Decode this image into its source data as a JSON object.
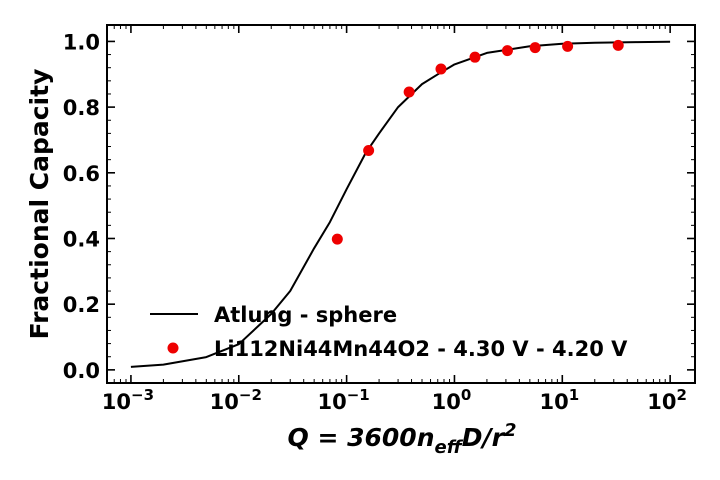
{
  "chart_data": {
    "type": "scatter",
    "xscale": "log",
    "xlim": [
      0.0006,
      170
    ],
    "ylim": [
      -0.04,
      1.05
    ],
    "xticks": [
      {
        "value": 0.001,
        "mantissa": "10",
        "exp": "−3"
      },
      {
        "value": 0.01,
        "mantissa": "10",
        "exp": "−2"
      },
      {
        "value": 0.1,
        "mantissa": "10",
        "exp": "−1"
      },
      {
        "value": 1,
        "mantissa": "10",
        "exp": "0"
      },
      {
        "value": 10,
        "mantissa": "10",
        "exp": "1"
      },
      {
        "value": 100,
        "mantissa": "10",
        "exp": "2"
      }
    ],
    "yticks": [
      {
        "value": 0.0,
        "label": "0.0"
      },
      {
        "value": 0.2,
        "label": "0.2"
      },
      {
        "value": 0.4,
        "label": "0.4"
      },
      {
        "value": 0.6,
        "label": "0.6"
      },
      {
        "value": 0.8,
        "label": "0.8"
      },
      {
        "value": 1.0,
        "label": "1.0"
      }
    ],
    "xlabel": {
      "base": "Q = 3600n",
      "sub": "eff",
      "mid": "D/r",
      "sup": "2"
    },
    "ylabel": "Fractional Capacity",
    "grid": false,
    "legend_position": "lower-right",
    "series": [
      {
        "name": "Atlung - sphere",
        "kind": "line",
        "color": "#000000",
        "x": [
          0.001,
          0.002,
          0.005,
          0.01,
          0.02,
          0.03,
          0.05,
          0.07,
          0.1,
          0.15,
          0.2,
          0.3,
          0.5,
          0.7,
          1,
          2,
          5,
          10,
          20,
          50,
          100
        ],
        "y": [
          0.009,
          0.016,
          0.039,
          0.078,
          0.17,
          0.24,
          0.37,
          0.45,
          0.55,
          0.66,
          0.72,
          0.8,
          0.87,
          0.9,
          0.93,
          0.965,
          0.985,
          0.993,
          0.996,
          0.998,
          0.999
        ]
      },
      {
        "name": "Li112Ni44Mn44O2 - 4.30 V - 4.20 V",
        "kind": "scatter",
        "color": "#ee0000",
        "x": [
          0.082,
          0.16,
          0.38,
          0.75,
          1.55,
          3.1,
          5.6,
          11.2,
          33
        ],
        "y": [
          0.398,
          0.668,
          0.846,
          0.916,
          0.952,
          0.972,
          0.981,
          0.985,
          0.988
        ]
      }
    ]
  }
}
